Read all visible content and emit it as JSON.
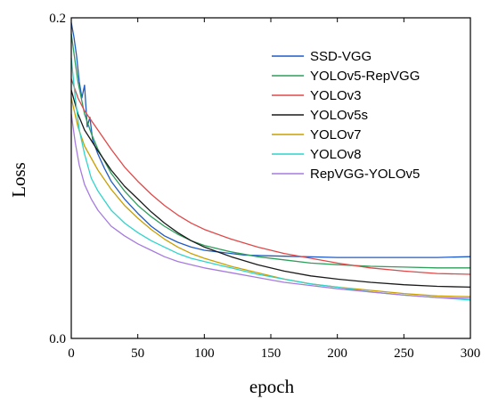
{
  "chart_data": {
    "type": "line",
    "title": "",
    "xlabel": "epoch",
    "ylabel": "Loss",
    "xlim": [
      0,
      300
    ],
    "ylim": [
      0.0,
      0.2
    ],
    "x_ticks": [
      0,
      50,
      100,
      150,
      200,
      250,
      300
    ],
    "y_ticks": [
      0.0,
      0.2
    ],
    "y_tick_labels": [
      "0.0",
      "0.2"
    ],
    "grid": false,
    "legend_position": "top-right",
    "series": [
      {
        "name": "SSD-VGG",
        "color": "#1f5bc6",
        "points": [
          [
            0,
            0.197
          ],
          [
            2,
            0.188
          ],
          [
            4,
            0.176
          ],
          [
            6,
            0.16
          ],
          [
            8,
            0.15
          ],
          [
            10,
            0.158
          ],
          [
            12,
            0.132
          ],
          [
            14,
            0.138
          ],
          [
            16,
            0.124
          ],
          [
            20,
            0.115
          ],
          [
            25,
            0.106
          ],
          [
            30,
            0.098
          ],
          [
            40,
            0.087
          ],
          [
            50,
            0.078
          ],
          [
            60,
            0.07
          ],
          [
            70,
            0.064
          ],
          [
            80,
            0.06
          ],
          [
            90,
            0.057
          ],
          [
            100,
            0.055
          ],
          [
            110,
            0.054
          ],
          [
            120,
            0.053
          ],
          [
            130,
            0.052
          ],
          [
            150,
            0.0515
          ],
          [
            175,
            0.051
          ],
          [
            200,
            0.0505
          ],
          [
            225,
            0.0505
          ],
          [
            250,
            0.0505
          ],
          [
            275,
            0.0505
          ],
          [
            300,
            0.051
          ]
        ]
      },
      {
        "name": "YOLOv5-RepVGG",
        "color": "#2e9e5b",
        "points": [
          [
            0,
            0.19
          ],
          [
            5,
            0.16
          ],
          [
            10,
            0.14
          ],
          [
            15,
            0.128
          ],
          [
            20,
            0.118
          ],
          [
            30,
            0.103
          ],
          [
            40,
            0.092
          ],
          [
            50,
            0.083
          ],
          [
            60,
            0.076
          ],
          [
            70,
            0.07
          ],
          [
            80,
            0.065
          ],
          [
            90,
            0.061
          ],
          [
            100,
            0.058
          ],
          [
            120,
            0.054
          ],
          [
            140,
            0.051
          ],
          [
            160,
            0.049
          ],
          [
            180,
            0.047
          ],
          [
            200,
            0.046
          ],
          [
            225,
            0.045
          ],
          [
            250,
            0.0445
          ],
          [
            275,
            0.044
          ],
          [
            300,
            0.044
          ]
        ]
      },
      {
        "name": "YOLOv3",
        "color": "#e04848",
        "points": [
          [
            0,
            0.162
          ],
          [
            5,
            0.15
          ],
          [
            10,
            0.142
          ],
          [
            20,
            0.13
          ],
          [
            30,
            0.118
          ],
          [
            40,
            0.107
          ],
          [
            50,
            0.098
          ],
          [
            60,
            0.09
          ],
          [
            70,
            0.083
          ],
          [
            80,
            0.077
          ],
          [
            90,
            0.072
          ],
          [
            100,
            0.068
          ],
          [
            120,
            0.062
          ],
          [
            140,
            0.057
          ],
          [
            160,
            0.053
          ],
          [
            180,
            0.05
          ],
          [
            200,
            0.047
          ],
          [
            225,
            0.044
          ],
          [
            250,
            0.042
          ],
          [
            275,
            0.0405
          ],
          [
            300,
            0.04
          ]
        ]
      },
      {
        "name": "YOLOv5s",
        "color": "#1a1a1a",
        "points": [
          [
            0,
            0.155
          ],
          [
            5,
            0.14
          ],
          [
            10,
            0.13
          ],
          [
            20,
            0.117
          ],
          [
            30,
            0.105
          ],
          [
            40,
            0.095
          ],
          [
            50,
            0.087
          ],
          [
            60,
            0.079
          ],
          [
            70,
            0.072
          ],
          [
            80,
            0.066
          ],
          [
            90,
            0.061
          ],
          [
            100,
            0.057
          ],
          [
            120,
            0.051
          ],
          [
            140,
            0.046
          ],
          [
            160,
            0.042
          ],
          [
            180,
            0.039
          ],
          [
            200,
            0.037
          ],
          [
            225,
            0.035
          ],
          [
            250,
            0.0335
          ],
          [
            275,
            0.0325
          ],
          [
            300,
            0.032
          ]
        ]
      },
      {
        "name": "YOLOv7",
        "color": "#c9a000",
        "points": [
          [
            0,
            0.15
          ],
          [
            5,
            0.132
          ],
          [
            10,
            0.12
          ],
          [
            20,
            0.105
          ],
          [
            30,
            0.093
          ],
          [
            40,
            0.083
          ],
          [
            50,
            0.075
          ],
          [
            60,
            0.068
          ],
          [
            70,
            0.062
          ],
          [
            80,
            0.057
          ],
          [
            90,
            0.053
          ],
          [
            100,
            0.05
          ],
          [
            120,
            0.045
          ],
          [
            140,
            0.041
          ],
          [
            160,
            0.037
          ],
          [
            180,
            0.034
          ],
          [
            200,
            0.032
          ],
          [
            225,
            0.03
          ],
          [
            250,
            0.028
          ],
          [
            275,
            0.0265
          ],
          [
            300,
            0.026
          ]
        ]
      },
      {
        "name": "YOLOv8",
        "color": "#2fd4cc",
        "points": [
          [
            0,
            0.175
          ],
          [
            3,
            0.15
          ],
          [
            6,
            0.13
          ],
          [
            10,
            0.115
          ],
          [
            15,
            0.1
          ],
          [
            20,
            0.092
          ],
          [
            25,
            0.086
          ],
          [
            30,
            0.08
          ],
          [
            40,
            0.072
          ],
          [
            50,
            0.066
          ],
          [
            60,
            0.061
          ],
          [
            70,
            0.057
          ],
          [
            80,
            0.053
          ],
          [
            90,
            0.05
          ],
          [
            100,
            0.048
          ],
          [
            120,
            0.044
          ],
          [
            140,
            0.04
          ],
          [
            160,
            0.037
          ],
          [
            180,
            0.034
          ],
          [
            200,
            0.032
          ],
          [
            225,
            0.029
          ],
          [
            250,
            0.027
          ],
          [
            275,
            0.0255
          ],
          [
            300,
            0.024
          ]
        ]
      },
      {
        "name": "RepVGG-YOLOv5",
        "color": "#a67be0",
        "points": [
          [
            0,
            0.14
          ],
          [
            3,
            0.122
          ],
          [
            6,
            0.108
          ],
          [
            10,
            0.096
          ],
          [
            15,
            0.087
          ],
          [
            20,
            0.08
          ],
          [
            25,
            0.075
          ],
          [
            30,
            0.07
          ],
          [
            40,
            0.064
          ],
          [
            50,
            0.059
          ],
          [
            60,
            0.055
          ],
          [
            70,
            0.051
          ],
          [
            80,
            0.048
          ],
          [
            90,
            0.046
          ],
          [
            100,
            0.044
          ],
          [
            120,
            0.041
          ],
          [
            140,
            0.038
          ],
          [
            160,
            0.035
          ],
          [
            180,
            0.033
          ],
          [
            200,
            0.031
          ],
          [
            225,
            0.029
          ],
          [
            250,
            0.027
          ],
          [
            275,
            0.0255
          ],
          [
            300,
            0.025
          ]
        ]
      }
    ]
  }
}
